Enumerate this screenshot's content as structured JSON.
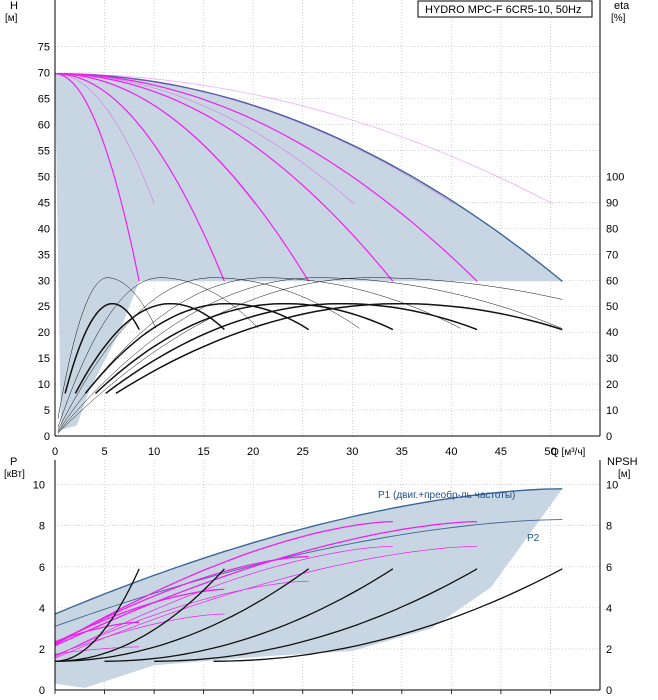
{
  "header": {
    "title": "HYDRO MPC-F 6CR5-10, 50Hz"
  },
  "colors": {
    "envelope_fill": "#c8d5e2",
    "envelope_edge": "#3c6896",
    "magenta": "#ee22ee",
    "black": "#111111",
    "grid": "#b4b4b4",
    "label_blue": "#1e4f8c"
  },
  "chart_data": [
    {
      "type": "line",
      "title": "HYDRO MPC-F 6CR5-10, 50Hz",
      "xlabel": "Q [м³/ч]",
      "x_ticks": [
        0,
        5,
        10,
        15,
        20,
        25,
        30,
        35,
        40,
        45,
        50
      ],
      "xlim": [
        0,
        55
      ],
      "y_left_label": [
        "H",
        "[м]"
      ],
      "y_left_ticks": [
        0,
        5,
        10,
        15,
        20,
        25,
        30,
        35,
        40,
        45,
        50,
        55,
        60,
        65,
        70,
        75
      ],
      "y_left_lim": [
        0,
        84
      ],
      "y_right_label": [
        "eta",
        "[%]"
      ],
      "y_right_ticks": [
        0,
        10,
        20,
        30,
        40,
        50,
        60,
        70,
        80,
        90,
        100
      ],
      "y_right_lim": [
        0,
        168
      ],
      "grid": true,
      "head_curves_magenta_endpoints": [
        {
          "pumps": 1,
          "qmax": 8.5,
          "hmax": 29.8
        },
        {
          "pumps": 2,
          "qmax": 17.1,
          "hmax": 29.8
        },
        {
          "pumps": 3,
          "qmax": 25.6,
          "hmax": 29.8
        },
        {
          "pumps": 4,
          "qmax": 34.1,
          "hmax": 29.8
        },
        {
          "pumps": 5,
          "qmax": 42.6,
          "hmax": 29.8
        }
      ],
      "head_envelope": {
        "shutoff_head": 69.8,
        "pumps": 6,
        "qmax": 51.2,
        "hmin": 29.8
      },
      "efficiency_curves": [
        {
          "pumps": 1,
          "qmax": 8.5,
          "eta_peak": 51,
          "eta_end": 41
        },
        {
          "pumps": 2,
          "qmax": 17.1,
          "eta_peak": 51,
          "eta_end": 41
        },
        {
          "pumps": 3,
          "qmax": 25.6,
          "eta_peak": 51,
          "eta_end": 41
        },
        {
          "pumps": 4,
          "qmax": 34.1,
          "eta_peak": 51,
          "eta_end": 41
        },
        {
          "pumps": 5,
          "qmax": 42.6,
          "eta_peak": 51,
          "eta_end": 41
        },
        {
          "pumps": 6,
          "qmax": 51.2,
          "eta_peak": 51,
          "eta_end": 41
        }
      ],
      "efficiency_thin_curves_peak": 61
    },
    {
      "type": "line",
      "xlim": [
        0,
        55
      ],
      "y_left_label": [
        "P",
        "[кВт]"
      ],
      "y_left_ticks": [
        0,
        2,
        4,
        6,
        8,
        10
      ],
      "y_left_lim": [
        0,
        11.2
      ],
      "y_right_label": [
        "NPSH",
        "[м]"
      ],
      "y_right_ticks": [
        0,
        2,
        4,
        6,
        8,
        10
      ],
      "y_right_lim": [
        0,
        11.2
      ],
      "grid": true,
      "annotations": [
        "P1 (двиг.+преобр-ль частоты)",
        "P2"
      ],
      "power_envelope_p1": {
        "p_at_zero": 3.7,
        "p_at_qmax": 9.8,
        "qmax": 51.2
      },
      "power_envelope_p2": {
        "p_at_zero": 3.1,
        "p_at_qmax": 8.3,
        "qmax": 51.2
      },
      "power_magenta_endpoints": [
        {
          "pumps": 1,
          "qmax": 8.5,
          "p": 3.3
        },
        {
          "pumps": 2,
          "qmax": 17.1,
          "p": 4.9
        },
        {
          "pumps": 3,
          "qmax": 25.6,
          "p": 6.5
        },
        {
          "pumps": 4,
          "qmax": 34.1,
          "p": 8.2
        },
        {
          "pumps": 5,
          "qmax": 42.6,
          "p": 8.2
        }
      ],
      "npsh_curves": [
        {
          "pumps": 1,
          "q_start": 0,
          "qmax": 8.5,
          "npsh_start": 1.4,
          "npsh_end": 5.9
        },
        {
          "pumps": 2,
          "q_start": 0,
          "qmax": 17.1,
          "npsh_start": 1.4,
          "npsh_end": 5.9
        },
        {
          "pumps": 3,
          "q_start": 0,
          "qmax": 25.6,
          "npsh_start": 1.4,
          "npsh_end": 5.9
        },
        {
          "pumps": 4,
          "q_start": 5,
          "qmax": 34.1,
          "npsh_start": 1.4,
          "npsh_end": 5.9
        },
        {
          "pumps": 5,
          "q_start": 10,
          "qmax": 42.6,
          "npsh_start": 1.4,
          "npsh_end": 5.9
        },
        {
          "pumps": 6,
          "q_start": 16,
          "qmax": 51.2,
          "npsh_start": 1.4,
          "npsh_end": 5.9
        }
      ]
    }
  ]
}
